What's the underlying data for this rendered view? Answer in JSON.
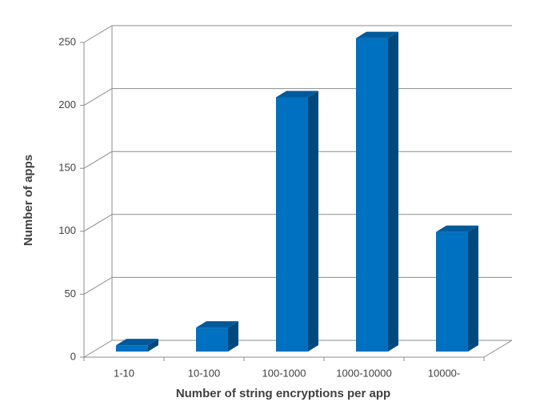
{
  "chart_data": {
    "type": "bar",
    "x_label": "Number of string encryptions per app",
    "y_label": "Number of apps",
    "categories": [
      "1-10",
      "10-100",
      "100-1000",
      "1000-10000",
      "10000-"
    ],
    "values": [
      5,
      19,
      202,
      249,
      95
    ],
    "color": "#0070c0",
    "ylim": [
      0,
      250
    ],
    "yticks": [
      0,
      50,
      100,
      150,
      200,
      250
    ],
    "grid": true
  }
}
